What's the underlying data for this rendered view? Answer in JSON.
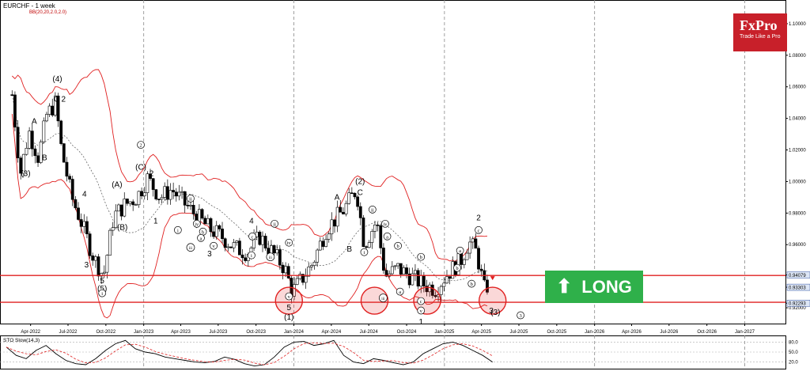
{
  "header": {
    "symbol_timeframe": "EURCHF - 1 week",
    "indicator": "BB(20,20,2.0,2.0)"
  },
  "logo": {
    "brand": "FxPro",
    "tagline": "Trade Like a Pro"
  },
  "signal": {
    "label": "LONG",
    "icon": "up-arrow-icon",
    "color": "#2fb04a"
  },
  "colors": {
    "bullish": "#ffffff",
    "bearish": "#000000",
    "bands": "#e02020",
    "levels": "#e02020",
    "grid": "#888888"
  },
  "chart_data": [
    {
      "type": "candlestick",
      "title": "EURCHF - 1 week",
      "ylim": [
        0.91,
        1.115
      ],
      "y_ticks": [
        "1.10000",
        "1.08000",
        "1.06000",
        "1.04000",
        "1.02000",
        "1.00000",
        "0.98000",
        "0.96000",
        "0.94079",
        "0.93303",
        "0.92293",
        "0.92000"
      ],
      "x_ticks": [
        "Apr-2022",
        "Jul-2022",
        "Oct-2022",
        "Jan-2023",
        "Apr-2023",
        "Jul-2023",
        "Oct-2023",
        "Jan-2024",
        "Apr-2024",
        "Jul-2024",
        "Oct-2024",
        "Jan-2025",
        "Apr-2025",
        "Jul-2025",
        "Oct-2025",
        "Jan-2026",
        "Apr-2026",
        "Jul-2026",
        "Oct-2026",
        "Jan-2027"
      ],
      "levels": [
        0.9405,
        0.9235
      ],
      "price_tags": [
        {
          "value": 0.9408,
          "label": "0.94079"
        },
        {
          "value": 0.933,
          "label": "0.93303"
        },
        {
          "value": 0.9229,
          "label": "0.92293"
        }
      ],
      "close_path": [
        [
          "2022-02-15",
          1.055
        ],
        [
          "2022-03-07",
          1.005
        ],
        [
          "2022-03-28",
          1.032
        ],
        [
          "2022-04-20",
          1.015
        ],
        [
          "2022-05-10",
          1.042
        ],
        [
          "2022-06-01",
          1.05
        ],
        [
          "2022-06-15",
          1.02
        ],
        [
          "2022-07-10",
          0.99
        ],
        [
          "2022-08-01",
          0.975
        ],
        [
          "2022-09-01",
          0.952
        ],
        [
          "2022-09-25",
          0.94
        ],
        [
          "2022-10-20",
          0.978
        ],
        [
          "2022-11-15",
          0.985
        ],
        [
          "2022-12-15",
          0.99
        ],
        [
          "2023-01-10",
          1.002
        ],
        [
          "2023-02-10",
          0.99
        ],
        [
          "2023-03-10",
          0.995
        ],
        [
          "2023-04-10",
          0.986
        ],
        [
          "2023-05-10",
          0.978
        ],
        [
          "2023-06-10",
          0.97
        ],
        [
          "2023-07-10",
          0.965
        ],
        [
          "2023-08-10",
          0.958
        ],
        [
          "2023-09-10",
          0.955
        ],
        [
          "2023-10-10",
          0.965
        ],
        [
          "2023-11-10",
          0.955
        ],
        [
          "2023-12-10",
          0.945
        ],
        [
          "2023-12-28",
          0.93
        ],
        [
          "2024-01-20",
          0.938
        ],
        [
          "2024-02-15",
          0.948
        ],
        [
          "2024-03-20",
          0.97
        ],
        [
          "2024-05-01",
          0.982
        ],
        [
          "2024-06-01",
          0.995
        ],
        [
          "2024-06-20",
          0.96
        ],
        [
          "2024-07-20",
          0.975
        ],
        [
          "2024-08-10",
          0.94
        ],
        [
          "2024-09-10",
          0.945
        ],
        [
          "2024-10-10",
          0.94
        ],
        [
          "2024-11-10",
          0.935
        ],
        [
          "2024-12-10",
          0.932
        ],
        [
          "2025-01-10",
          0.942
        ],
        [
          "2025-02-10",
          0.95
        ],
        [
          "2025-03-01",
          0.962
        ],
        [
          "2025-03-20",
          0.955
        ],
        [
          "2025-04-08",
          0.932
        ],
        [
          "2025-04-20",
          0.935
        ]
      ],
      "annotations": [
        {
          "date": "2022-03-20",
          "price": 1.005,
          "text": "(3)"
        },
        {
          "date": "2022-04-10",
          "price": 1.038,
          "text": "A"
        },
        {
          "date": "2022-05-05",
          "price": 1.015,
          "text": "B"
        },
        {
          "date": "2022-06-05",
          "price": 1.065,
          "text": "(4)"
        },
        {
          "date": "2022-06-03",
          "price": 1.052,
          "text": "C"
        },
        {
          "date": "2022-06-20",
          "price": 1.052,
          "text": "2"
        },
        {
          "date": "2022-06-15",
          "price": 1.029,
          "text": "1"
        },
        {
          "date": "2022-08-10",
          "price": 0.992,
          "text": "4"
        },
        {
          "date": "2022-08-15",
          "price": 0.947,
          "text": "3"
        },
        {
          "date": "2022-09-22",
          "price": 0.937,
          "text": "5"
        },
        {
          "date": "2022-09-22",
          "price": 0.932,
          "text": "(5)"
        },
        {
          "date": "2022-09-22",
          "price": 0.928,
          "text": "i",
          "circled": true
        },
        {
          "date": "2022-10-28",
          "price": 0.998,
          "text": "(A)"
        },
        {
          "date": "2022-11-10",
          "price": 0.971,
          "text": "(B)"
        },
        {
          "date": "2022-12-25",
          "price": 1.022,
          "text": "2",
          "circled": true
        },
        {
          "date": "2022-12-25",
          "price": 1.009,
          "text": "(C)"
        },
        {
          "date": "2023-01-20",
          "price": 1.005,
          "text": "2"
        },
        {
          "date": "2023-01-30",
          "price": 0.975,
          "text": "1"
        },
        {
          "date": "2023-04-25",
          "price": 0.988,
          "text": "ii",
          "circled": true
        },
        {
          "date": "2023-03-25",
          "price": 0.968,
          "text": "i",
          "circled": true
        },
        {
          "date": "2023-05-10",
          "price": 0.972,
          "text": "iv",
          "circled": true
        },
        {
          "date": "2023-05-25",
          "price": 0.967,
          "text": "b",
          "circled": true
        },
        {
          "date": "2023-05-20",
          "price": 0.963,
          "text": "a",
          "circled": true
        },
        {
          "date": "2023-04-25",
          "price": 0.957,
          "text": "iii",
          "circled": true
        },
        {
          "date": "2023-06-20",
          "price": 0.958,
          "text": "v",
          "circled": true
        },
        {
          "date": "2023-06-10",
          "price": 0.954,
          "text": "3"
        },
        {
          "date": "2023-09-20",
          "price": 0.975,
          "text": "4"
        },
        {
          "date": "2023-09-22",
          "price": 0.964,
          "text": "c",
          "circled": true
        },
        {
          "date": "2023-09-20",
          "price": 0.952,
          "text": "i",
          "circled": true
        },
        {
          "date": "2023-11-15",
          "price": 0.972,
          "text": "ii",
          "circled": true
        },
        {
          "date": "2023-11-05",
          "price": 0.951,
          "text": "iii",
          "circled": true
        },
        {
          "date": "2023-12-20",
          "price": 0.96,
          "text": "iv",
          "circled": true
        },
        {
          "date": "2023-12-20",
          "price": 0.926,
          "text": "v",
          "circled": true
        },
        {
          "date": "2023-12-20",
          "price": 0.92,
          "text": "5"
        },
        {
          "date": "2023-12-20",
          "price": 0.914,
          "text": "(1)"
        },
        {
          "date": "2024-04-15",
          "price": 0.99,
          "text": "A"
        },
        {
          "date": "2024-06-10",
          "price": 1.0,
          "text": "(2)"
        },
        {
          "date": "2024-06-10",
          "price": 0.993,
          "text": "C"
        },
        {
          "date": "2024-05-15",
          "price": 0.957,
          "text": "B"
        },
        {
          "date": "2024-07-10",
          "price": 0.981,
          "text": "ii",
          "circled": true
        },
        {
          "date": "2024-06-20",
          "price": 0.954,
          "text": "i",
          "circled": true
        },
        {
          "date": "2024-08-10",
          "price": 0.972,
          "text": "iv",
          "circled": true
        },
        {
          "date": "2024-08-15",
          "price": 0.964,
          "text": "a",
          "circled": true
        },
        {
          "date": "2024-09-10",
          "price": 0.958,
          "text": "b",
          "circled": true
        },
        {
          "date": "2024-08-05",
          "price": 0.925,
          "text": "iii",
          "circled": true
        },
        {
          "date": "2024-09-15",
          "price": 0.929,
          "text": "a",
          "circled": true
        },
        {
          "date": "2024-11-05",
          "price": 0.951,
          "text": "b",
          "circled": true
        },
        {
          "date": "2024-11-05",
          "price": 0.923,
          "text": "c",
          "circled": true
        },
        {
          "date": "2024-11-05",
          "price": 0.917,
          "text": "v",
          "circled": true
        },
        {
          "date": "2024-11-05",
          "price": 0.911,
          "text": "1"
        },
        {
          "date": "2025-02-08",
          "price": 0.955,
          "text": "a",
          "circled": true
        },
        {
          "date": "2025-02-01",
          "price": 0.944,
          "text": "b",
          "circled": true
        },
        {
          "date": "2025-03-25",
          "price": 0.977,
          "text": "2"
        },
        {
          "date": "2025-03-25",
          "price": 0.968,
          "text": "c",
          "circled": true
        },
        {
          "date": "2025-03-08",
          "price": 0.934,
          "text": "b",
          "circled": true
        },
        {
          "date": "2025-04-25",
          "price": 0.918,
          "text": "3"
        },
        {
          "date": "2025-05-05",
          "price": 0.917,
          "text": "(3)"
        },
        {
          "date": "2025-07-05",
          "price": 0.914,
          "text": "3",
          "circled": true
        }
      ],
      "highlights": [
        {
          "date": "2023-12-20",
          "price": 0.9245
        },
        {
          "date": "2024-07-15",
          "price": 0.9245
        },
        {
          "date": "2024-11-20",
          "price": 0.9245
        },
        {
          "date": "2025-04-28",
          "price": 0.9245
        }
      ]
    },
    {
      "type": "line",
      "title": "STO Slow(14,3)",
      "ylim": [
        0,
        100
      ],
      "y_ticks": [
        "80.0",
        "50.0",
        "20.0"
      ],
      "series": [
        {
          "values": [
            65,
            40,
            30,
            55,
            70,
            45,
            25,
            15,
            12,
            30,
            55,
            75,
            85,
            60,
            50,
            45,
            35,
            30,
            25,
            20,
            18,
            22,
            35,
            28,
            15,
            8,
            12,
            35,
            65,
            80,
            82,
            70,
            75,
            85,
            40,
            20,
            15,
            30,
            25,
            18,
            12,
            20,
            45,
            60,
            75,
            80,
            70,
            55,
            40,
            20
          ]
        }
      ]
    }
  ]
}
